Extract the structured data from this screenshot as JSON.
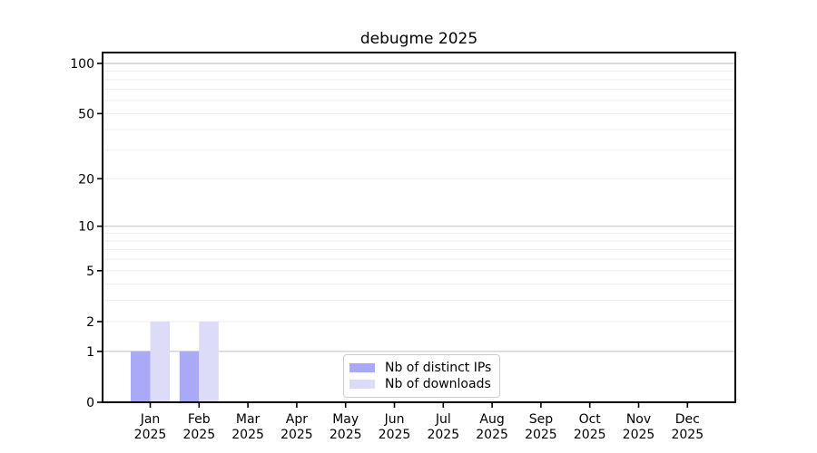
{
  "chart_data": {
    "type": "bar",
    "title": "debugme 2025",
    "categories": [
      "Jan 2025",
      "Feb 2025",
      "Mar 2025",
      "Apr 2025",
      "May 2025",
      "Jun 2025",
      "Jul 2025",
      "Aug 2025",
      "Sep 2025",
      "Oct 2025",
      "Nov 2025",
      "Dec 2025"
    ],
    "series": [
      {
        "name": "Nb of distinct IPs",
        "color": "#a9a9f8",
        "values": [
          1,
          1,
          0,
          0,
          0,
          0,
          0,
          0,
          0,
          0,
          0,
          0
        ]
      },
      {
        "name": "Nb of downloads",
        "color": "#dcdcf9",
        "values": [
          2,
          2,
          0,
          0,
          0,
          0,
          0,
          0,
          0,
          0,
          0,
          0
        ]
      }
    ],
    "yscale": "log1p",
    "ylim": [
      0,
      117
    ],
    "ytick_labels": [
      "0",
      "1",
      "2",
      "5",
      "10",
      "20",
      "50",
      "100"
    ],
    "ytick_values": [
      0,
      1,
      2,
      5,
      10,
      20,
      50,
      100
    ],
    "ymajor_grid": [
      1,
      10,
      100
    ],
    "yminor_grid": [
      2,
      3,
      4,
      5,
      6,
      7,
      8,
      9,
      20,
      30,
      40,
      50,
      60,
      70,
      80,
      90
    ],
    "grid": true,
    "legend_position": "lower center"
  },
  "colors": {
    "spine": "#000000",
    "major_grid": "#c8c8c8",
    "minor_grid": "#ededed",
    "tick": "#000000",
    "legend_border": "#cccccc",
    "background": "#ffffff"
  }
}
